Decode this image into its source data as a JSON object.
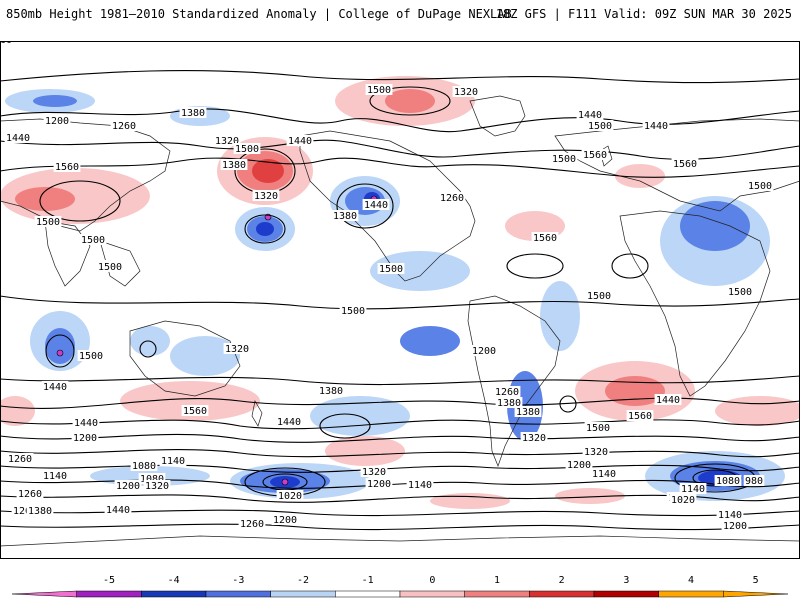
{
  "header": {
    "title_left": "850mb Height 1981–2010 Standardized Anomaly | College of DuPage NEXLAB",
    "title_right": "18Z GFS | F111 Valid: 09Z SUN MAR 30 2025"
  },
  "map": {
    "contour_labels": [
      "1440",
      "1200",
      "1260",
      "1380",
      "1320",
      "1560",
      "1500",
      "1380",
      "1440",
      "1320",
      "1380",
      "1440",
      "1260",
      "1320",
      "1500",
      "1560",
      "1440",
      "1500",
      "1440",
      "1500",
      "1560",
      "1560",
      "1500",
      "1500",
      "1500",
      "1500",
      "1500",
      "1500",
      "1500",
      "1500",
      "1500",
      "1500",
      "1440",
      "1320",
      "1200",
      "1260",
      "1560",
      "1440",
      "1380",
      "1380",
      "1320",
      "1500",
      "1380",
      "1440",
      "1200",
      "1560",
      "1500",
      "1440",
      "1260",
      "1320",
      "1140",
      "1080",
      "1140",
      "1080",
      "1200",
      "1320",
      "1020",
      "1200",
      "1140",
      "1260",
      "1200",
      "1140",
      "1320",
      "1260",
      "1200",
      "1200",
      "1140",
      "1080",
      "980",
      "1020",
      "1140",
      "1200",
      "1260",
      "1380",
      "1440",
      "1260"
    ],
    "anomaly_colors": {
      "strong_negative": "#1e3ccc",
      "moderate_negative": "#5b82e6",
      "weak_negative": "#bcd6f7",
      "weak_positive": "#f9c7c7",
      "moderate_positive": "#f08080",
      "strong_positive": "#e04040",
      "extreme_negative": "#c83ec8"
    }
  },
  "colorbar": {
    "tick_labels": [
      "-5",
      "-4",
      "-3",
      "-2",
      "-1",
      "0",
      "1",
      "2",
      "3",
      "4",
      "5"
    ],
    "colors": [
      "#f070d0",
      "#a020c0",
      "#1838b8",
      "#5070e0",
      "#b8d4f4",
      "#ffffff",
      "#f8c0c0",
      "#f08080",
      "#d83030",
      "#b00000",
      "#ffa500"
    ]
  }
}
